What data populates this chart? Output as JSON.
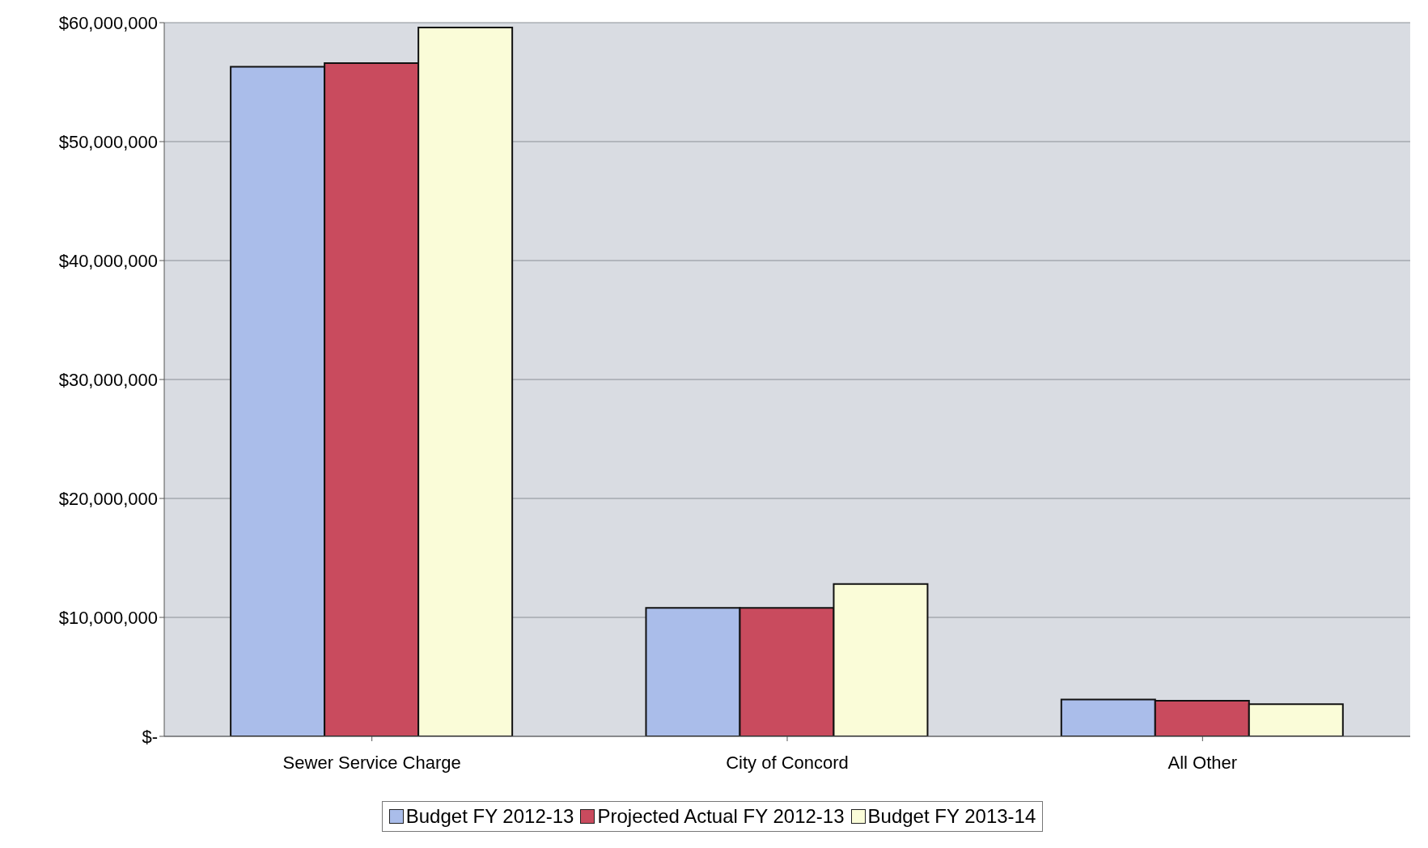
{
  "chart_data": {
    "type": "bar",
    "categories": [
      "Sewer Service Charge",
      "City of Concord",
      "All Other"
    ],
    "series": [
      {
        "name": "Budget FY 2012-13",
        "color": "#aabdea",
        "values": [
          56300000,
          10800000,
          3100000
        ]
      },
      {
        "name": "Projected Actual FY 2012-13",
        "color": "#c94b5e",
        "values": [
          56600000,
          10800000,
          3000000
        ]
      },
      {
        "name": "Budget FY 2013-14",
        "color": "#fafcd8",
        "values": [
          59600000,
          12800000,
          2700000
        ]
      }
    ],
    "ylim": [
      0,
      60000000
    ],
    "yticks": [
      {
        "value": 0,
        "label": "$-"
      },
      {
        "value": 10000000,
        "label": "$10,000,000"
      },
      {
        "value": 20000000,
        "label": "$20,000,000"
      },
      {
        "value": 30000000,
        "label": "$30,000,000"
      },
      {
        "value": 40000000,
        "label": "$40,000,000"
      },
      {
        "value": 50000000,
        "label": "$50,000,000"
      },
      {
        "value": 60000000,
        "label": "$60,000,000"
      }
    ],
    "grid": "y",
    "legend": "bottom"
  }
}
